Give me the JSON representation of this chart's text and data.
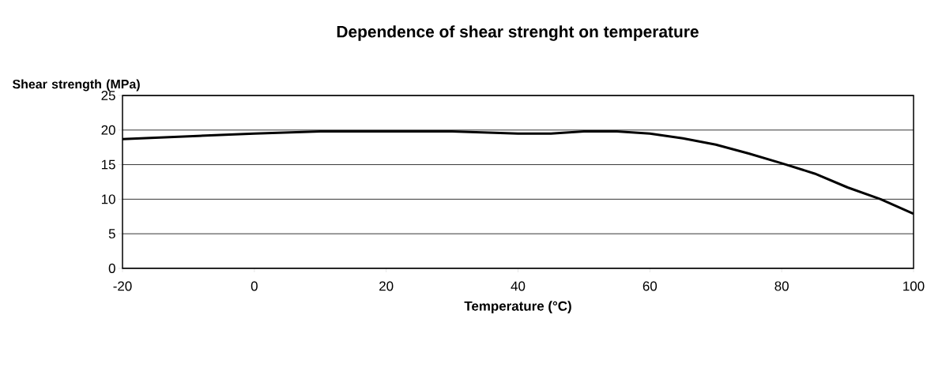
{
  "chart_data": {
    "type": "line",
    "title": "Dependence of shear strenght on temperature",
    "xlabel": "Temperature (°C)",
    "ylabel": "Shear strength (MPa)",
    "x": [
      -20,
      0,
      10,
      20,
      30,
      40,
      45,
      50,
      55,
      60,
      65,
      70,
      75,
      80,
      85,
      90,
      95,
      100
    ],
    "series": [
      {
        "color": "#000000",
        "values": [
          18.7,
          19.5,
          19.8,
          19.8,
          19.8,
          19.5,
          19.5,
          19.8,
          19.8,
          19.5,
          18.8,
          17.9,
          16.6,
          15.2,
          13.7,
          11.7,
          10.0,
          7.9
        ]
      }
    ],
    "xlim": [
      -20,
      100
    ],
    "ylim": [
      0,
      25
    ],
    "xticks": [
      -20,
      0,
      20,
      40,
      60,
      80,
      100
    ],
    "yticks": [
      0,
      5,
      10,
      15,
      20,
      25
    ],
    "grid": "y",
    "marker": "none",
    "line_style": "solid"
  }
}
